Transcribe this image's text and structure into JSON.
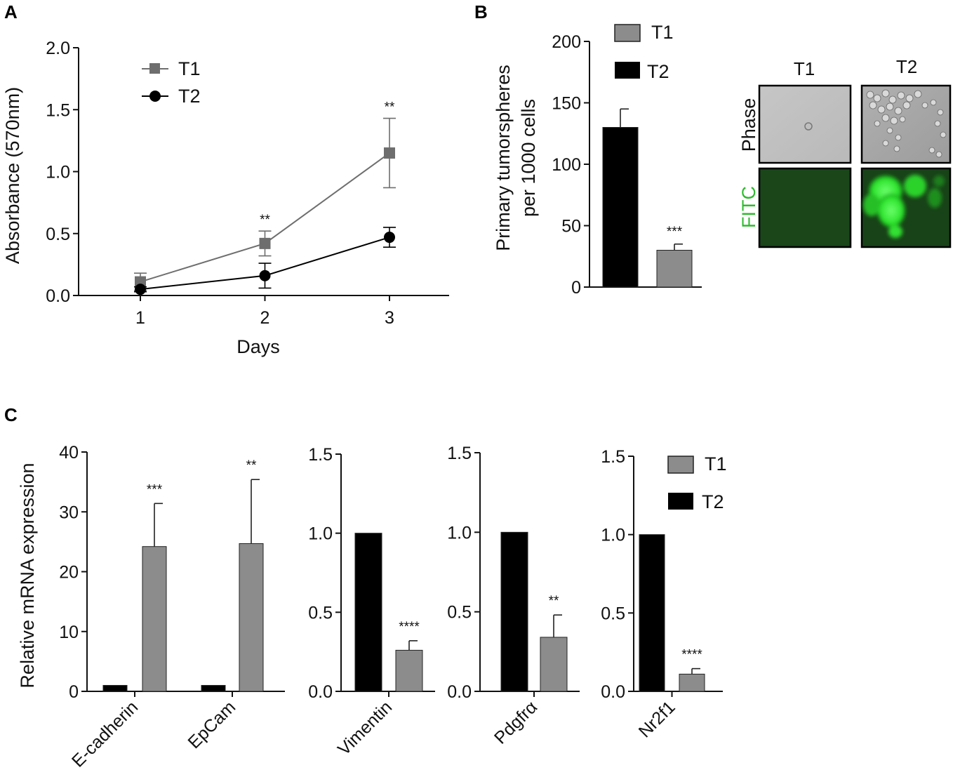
{
  "chart_data": [
    {
      "panel": "A",
      "type": "line",
      "xlabel": "Days",
      "ylabel": "Absorbance (570nm)",
      "x": [
        1,
        2,
        3
      ],
      "x_tick_labels": [
        "1",
        "2",
        "3"
      ],
      "ylim": [
        0,
        2.0
      ],
      "y_ticks": [
        "0.0",
        "0.5",
        "1.0",
        "1.5",
        "2.0"
      ],
      "series": [
        {
          "name": "T1",
          "marker": "square",
          "color": "#6e6e6e",
          "values": [
            0.11,
            0.42,
            1.15
          ],
          "errors": [
            0.07,
            0.1,
            0.28
          ]
        },
        {
          "name": "T2",
          "marker": "circle",
          "color": "#000000",
          "values": [
            0.05,
            0.16,
            0.47
          ],
          "errors": [
            0.02,
            0.1,
            0.08
          ]
        }
      ],
      "annotations": [
        {
          "x": 2,
          "text": "**"
        },
        {
          "x": 3,
          "text": "**"
        }
      ]
    },
    {
      "panel": "B",
      "type": "bar",
      "ylabel_line1": "Primary tumorspheres",
      "ylabel_line2": "per 1000 cells",
      "ylim": [
        0,
        200
      ],
      "y_ticks": [
        "0",
        "50",
        "100",
        "150",
        "200"
      ],
      "categories": [
        "T2",
        "T1"
      ],
      "values": [
        130,
        30
      ],
      "errors": [
        15,
        5
      ],
      "colors": [
        "#000000",
        "#8c8c8c"
      ],
      "annotations": [
        {
          "bar": 1,
          "text": "***"
        }
      ],
      "legend": [
        {
          "name": "T1",
          "color": "#8c8c8c"
        },
        {
          "name": "T2",
          "color": "#000000"
        }
      ]
    },
    {
      "panel": "C1",
      "type": "bar",
      "ylabel": "Relative mRNA expression",
      "ylim": [
        0,
        40
      ],
      "y_ticks": [
        "0",
        "10",
        "20",
        "30",
        "40"
      ],
      "categories": [
        "E-cadherin",
        "EpCam"
      ],
      "series": [
        {
          "name": "T2",
          "color": "#000000",
          "values": [
            1,
            1
          ],
          "errors": [
            0,
            0
          ]
        },
        {
          "name": "T1",
          "color": "#8c8c8c",
          "values": [
            24.2,
            24.7
          ],
          "errors": [
            7.2,
            10.7
          ]
        }
      ],
      "annotations": [
        {
          "category": 0,
          "text": "***"
        },
        {
          "category": 1,
          "text": "**"
        }
      ]
    },
    {
      "panel": "C2",
      "type": "bar",
      "ylim": [
        0,
        1.5
      ],
      "y_ticks": [
        "0.0",
        "0.5",
        "1.0",
        "1.5"
      ],
      "categories": [
        "Vimentin"
      ],
      "series": [
        {
          "name": "T2",
          "color": "#000000",
          "values": [
            1.0
          ],
          "errors": [
            0
          ]
        },
        {
          "name": "T1",
          "color": "#8c8c8c",
          "values": [
            0.26
          ],
          "errors": [
            0.06
          ]
        }
      ],
      "annotations": [
        {
          "category": 0,
          "text": "****"
        }
      ]
    },
    {
      "panel": "C3",
      "type": "bar",
      "ylim": [
        0,
        1.5
      ],
      "y_ticks": [
        "0.0",
        "0.5",
        "1.0",
        "1.5"
      ],
      "categories": [
        "Pdgfrα"
      ],
      "series": [
        {
          "name": "T2",
          "color": "#000000",
          "values": [
            1.0
          ],
          "errors": [
            0
          ]
        },
        {
          "name": "T1",
          "color": "#8c8c8c",
          "values": [
            0.34
          ],
          "errors": [
            0.14
          ]
        }
      ],
      "annotations": [
        {
          "category": 0,
          "text": "**"
        }
      ]
    },
    {
      "panel": "C4",
      "type": "bar",
      "ylim": [
        0,
        1.5
      ],
      "y_ticks": [
        "0.0",
        "0.5",
        "1.0",
        "1.5"
      ],
      "categories": [
        "Nr2f1"
      ],
      "series": [
        {
          "name": "T2",
          "color": "#000000",
          "values": [
            1.0
          ],
          "errors": [
            0
          ]
        },
        {
          "name": "T1",
          "color": "#8c8c8c",
          "values": [
            0.11
          ],
          "errors": [
            0.035
          ]
        }
      ],
      "annotations": [
        {
          "category": 0,
          "text": "****"
        }
      ],
      "legend": [
        {
          "name": "T1",
          "color": "#8c8c8c"
        },
        {
          "name": "T2",
          "color": "#000000"
        }
      ]
    }
  ],
  "panel_labels": {
    "A": "A",
    "B": "B",
    "C": "C"
  },
  "micrographs": {
    "columns": [
      "T1",
      "T2"
    ],
    "rows": [
      {
        "label": "Phase",
        "label_color": "#000000"
      },
      {
        "label": "FITC",
        "label_color": "#2dbb2d"
      }
    ]
  }
}
